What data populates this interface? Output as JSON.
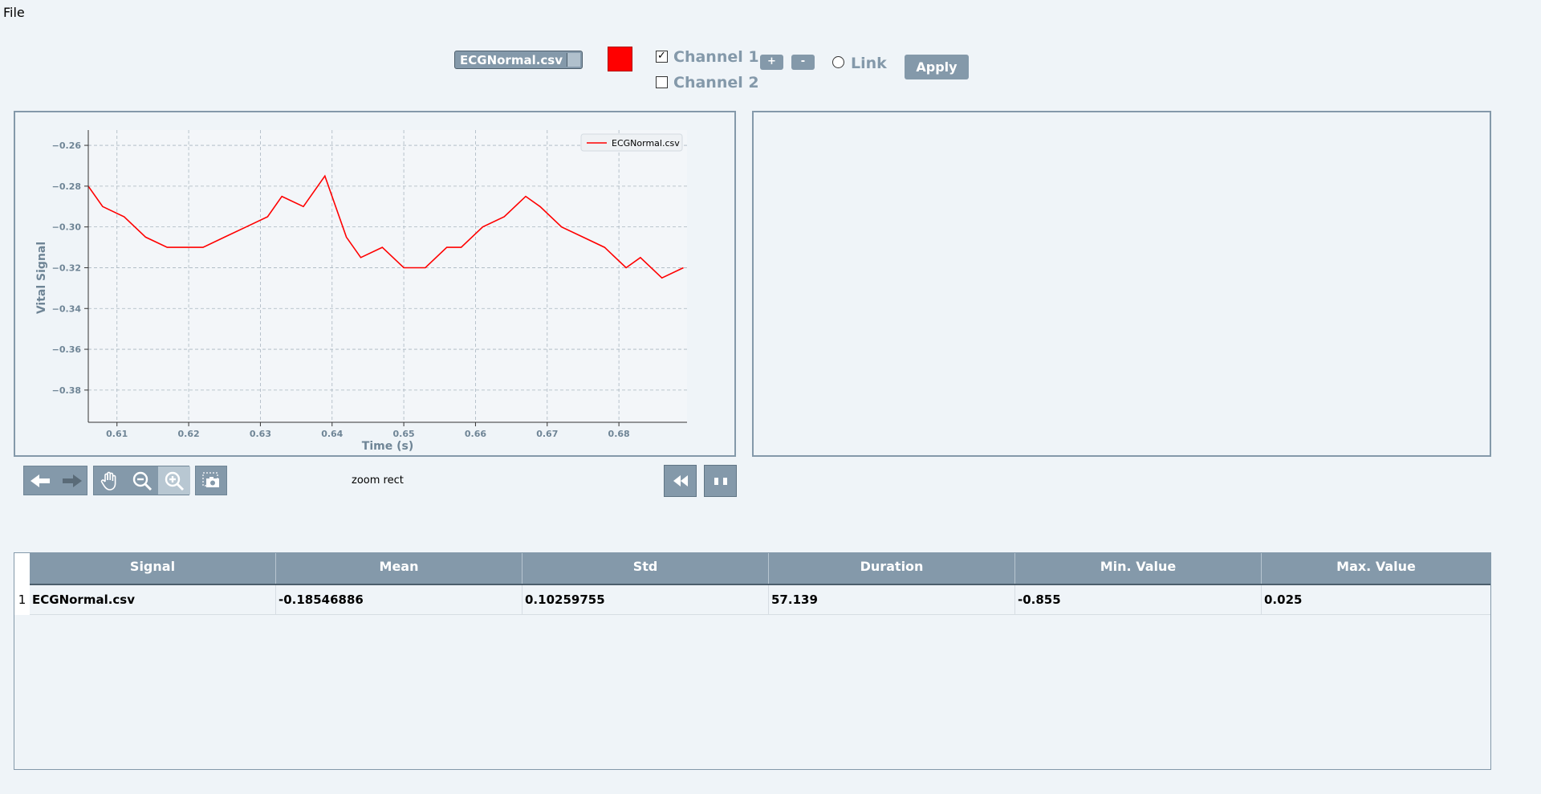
{
  "menu": {
    "file_label": "File"
  },
  "toolbar": {
    "file_select_value": "ECGNormal.csv",
    "signal_color": "#ff0000",
    "channel1_label": "Channel 1",
    "channel1_checked": true,
    "channel2_label": "Channel 2",
    "channel2_checked": false,
    "plus_label": "+",
    "minus_label": "-",
    "link_label": "Link",
    "apply_label": "Apply"
  },
  "nav_toolbar": {
    "status_text": "zoom rect",
    "icons": [
      "back-arrow-icon",
      "forward-arrow-icon",
      "pan-hand-icon",
      "zoom-out-icon",
      "zoom-in-icon",
      "screenshot-icon"
    ]
  },
  "playback": {
    "icons": [
      "rewind-icon",
      "pause-icon"
    ]
  },
  "chart_data": {
    "type": "line",
    "xlabel": "Time (s)",
    "ylabel": "Vital Signal",
    "xlim": [
      0.606,
      0.6895
    ],
    "ylim": [
      -0.3958,
      -0.2525
    ],
    "x_ticks": [
      0.61,
      0.62,
      0.63,
      0.64,
      0.65,
      0.66,
      0.67,
      0.68
    ],
    "x_tick_labels": [
      "0.61",
      "0.62",
      "0.63",
      "0.64",
      "0.65",
      "0.66",
      "0.67",
      "0.68"
    ],
    "y_ticks": [
      -0.26,
      -0.28,
      -0.3,
      -0.32,
      -0.34,
      -0.36,
      -0.38
    ],
    "y_tick_labels": [
      "−0.26",
      "−0.28",
      "−0.30",
      "−0.32",
      "−0.34",
      "−0.36",
      "−0.38"
    ],
    "grid": true,
    "legend_position": "top-right",
    "series": [
      {
        "name": "ECGNormal.csv",
        "color": "#ff0000",
        "x": [
          0.606,
          0.608,
          0.611,
          0.614,
          0.617,
          0.62,
          0.622,
          0.625,
          0.628,
          0.631,
          0.633,
          0.636,
          0.639,
          0.642,
          0.644,
          0.647,
          0.65,
          0.653,
          0.656,
          0.658,
          0.661,
          0.664,
          0.667,
          0.669,
          0.672,
          0.675,
          0.678,
          0.681,
          0.683,
          0.686,
          0.689
        ],
        "y": [
          -0.28,
          -0.29,
          -0.295,
          -0.305,
          -0.31,
          -0.31,
          -0.31,
          -0.305,
          -0.3,
          -0.295,
          -0.285,
          -0.29,
          -0.275,
          -0.305,
          -0.315,
          -0.31,
          -0.32,
          -0.32,
          -0.31,
          -0.31,
          -0.3,
          -0.295,
          -0.285,
          -0.29,
          -0.3,
          -0.305,
          -0.31,
          -0.32,
          -0.315,
          -0.325,
          -0.32
        ]
      }
    ]
  },
  "table": {
    "columns": [
      "Signal",
      "Mean",
      "Std",
      "Duration",
      "Min. Value",
      "Max. Value"
    ],
    "rows": [
      {
        "index": "1",
        "cells": [
          "ECGNormal.csv",
          "-0.18546886",
          "0.10259755",
          "57.139",
          "-0.855",
          "0.025"
        ]
      }
    ]
  }
}
